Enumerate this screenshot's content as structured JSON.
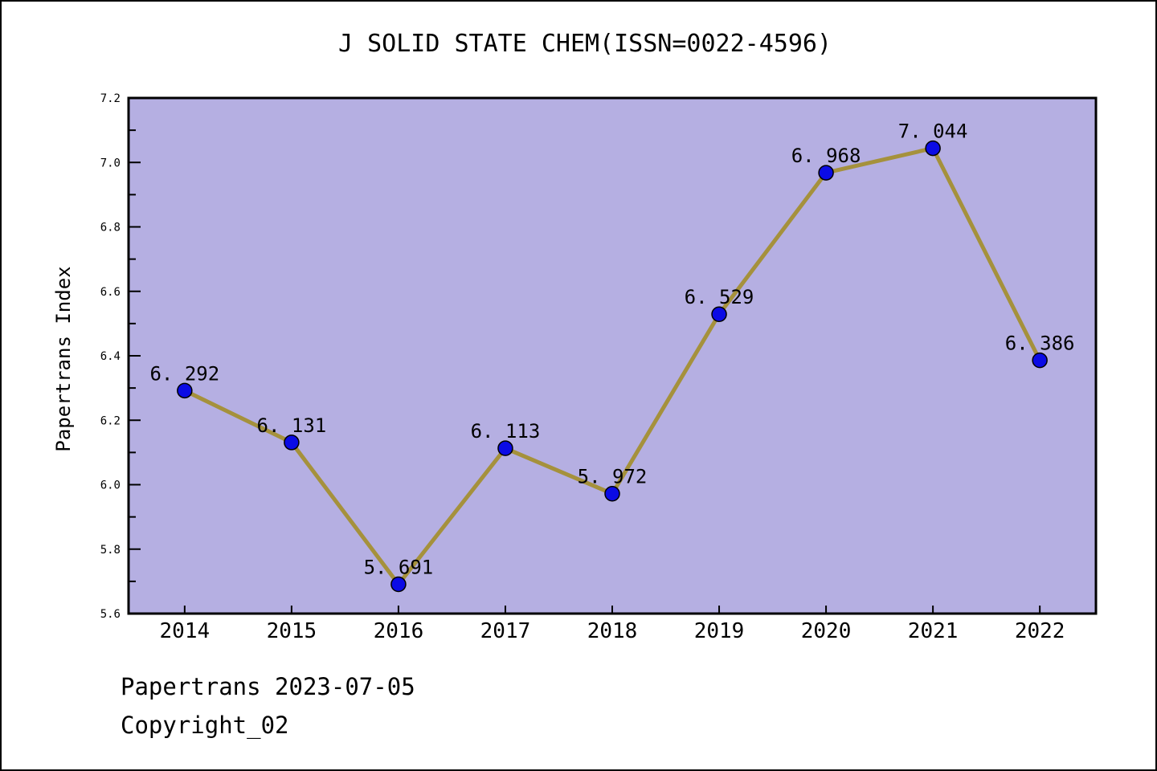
{
  "page": {
    "background": "#ffffff",
    "border_color": "#000000"
  },
  "chart_data": {
    "type": "line",
    "title": "J SOLID STATE CHEM(ISSN=0022-4596)",
    "xlabel": "",
    "ylabel": "Papertrans Index",
    "categories": [
      "2014",
      "2015",
      "2016",
      "2017",
      "2018",
      "2019",
      "2020",
      "2021",
      "2022"
    ],
    "values": [
      6.292,
      6.131,
      5.691,
      6.113,
      5.972,
      6.529,
      6.968,
      7.044,
      6.386
    ],
    "point_labels": [
      "6. 292",
      "6. 131",
      "5. 691",
      "6. 113",
      "5. 972",
      "6. 529",
      "6. 968",
      "7. 044",
      "6. 386"
    ],
    "ylim": [
      5.6,
      7.2
    ],
    "ytick_labels": [
      "5.6",
      "5.8",
      "6.0",
      "6.2",
      "6.4",
      "6.6",
      "6.8",
      "7.0",
      "7.2"
    ],
    "minor_ytick_values": [
      5.7,
      5.9,
      6.1,
      6.3,
      6.5,
      6.7,
      6.9,
      7.1
    ],
    "grid": false,
    "legend": null,
    "style": {
      "plot_bg": "#b5afe2",
      "line_color": "#a5913c",
      "marker_color": "#0b0be5",
      "marker_edge": "#000000",
      "axis_color": "#000000",
      "text_color": "#000000"
    }
  },
  "footer": {
    "line1": "Papertrans 2023-07-05",
    "line2": "Copyright_02"
  }
}
